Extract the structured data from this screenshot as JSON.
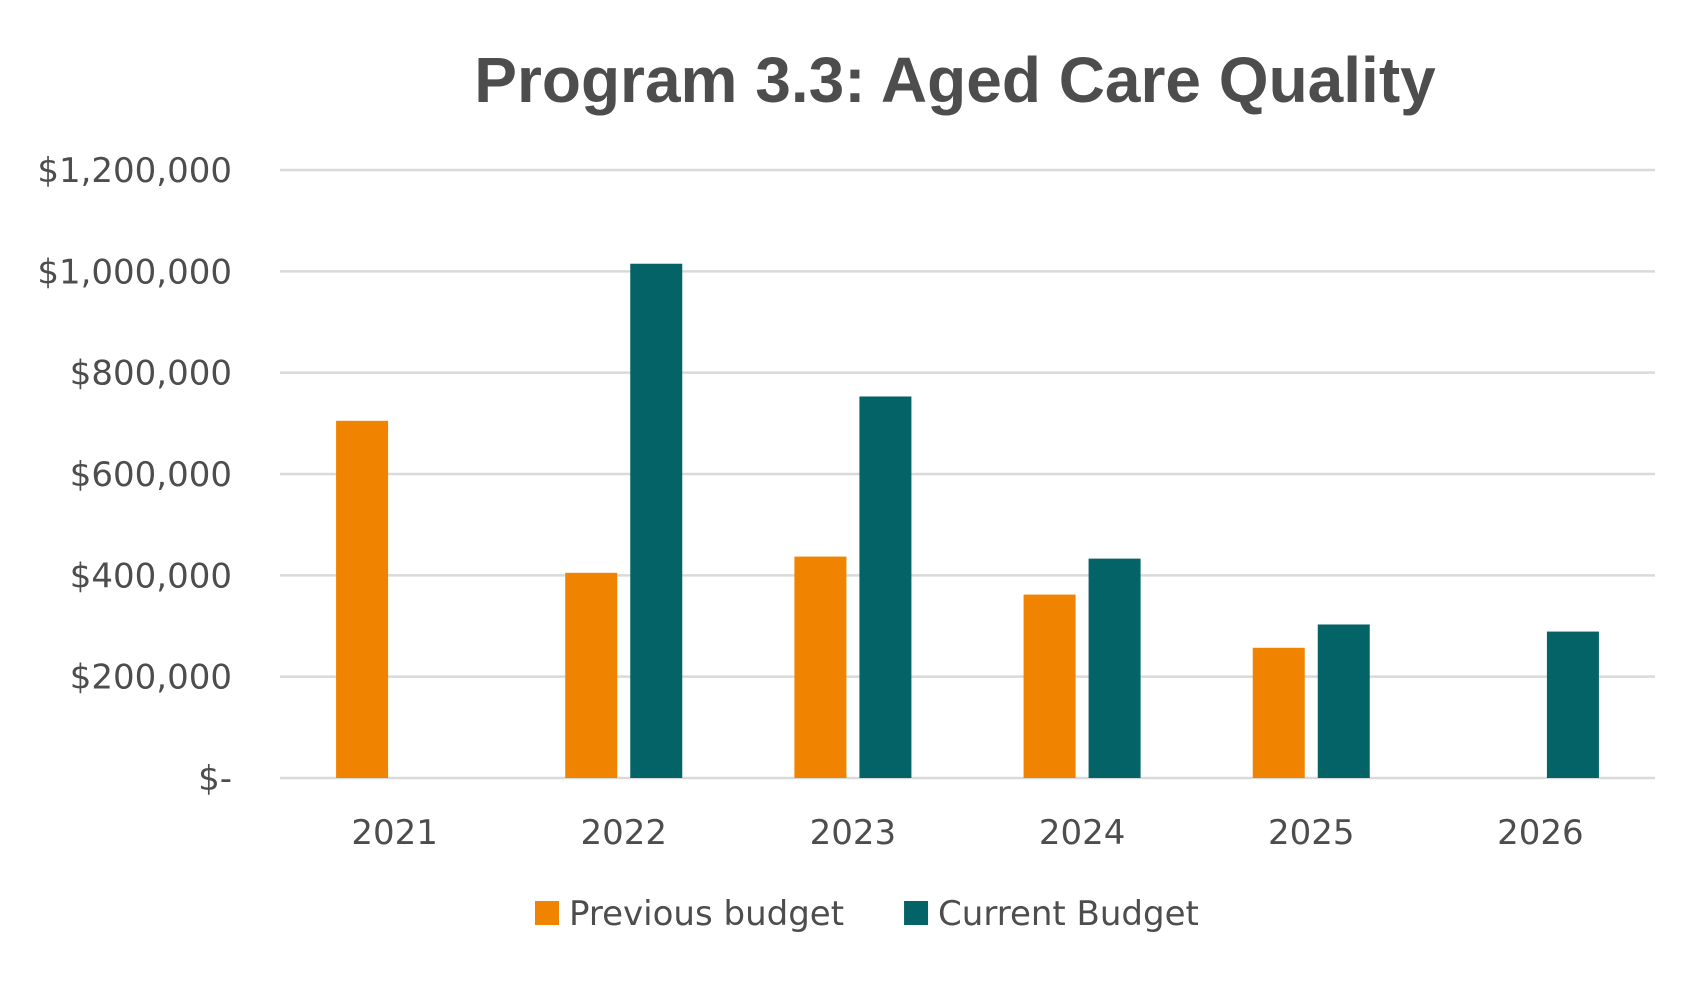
{
  "chart_data": {
    "type": "bar",
    "title": "Program 3.3: Aged Care Quality",
    "xlabel": "",
    "ylabel": "",
    "categories": [
      "2021",
      "2022",
      "2023",
      "2024",
      "2025",
      "2026"
    ],
    "series": [
      {
        "name": "Previous budget",
        "color": "#f08300",
        "values": [
          705000,
          405000,
          437000,
          362000,
          257000,
          null
        ]
      },
      {
        "name": "Current Budget",
        "color": "#046366",
        "values": [
          null,
          1015000,
          753000,
          433000,
          303000,
          289000
        ]
      }
    ],
    "ylim": [
      0,
      1200000
    ],
    "yticks": [
      {
        "value": 0,
        "label": "$-"
      },
      {
        "value": 200000,
        "label": "$200,000"
      },
      {
        "value": 400000,
        "label": "$400,000"
      },
      {
        "value": 600000,
        "label": "$600,000"
      },
      {
        "value": 800000,
        "label": "$800,000"
      },
      {
        "value": 1000000,
        "label": "$1,000,000"
      },
      {
        "value": 1200000,
        "label": "$1,200,000"
      }
    ],
    "grid": true,
    "legend": "bottom-center"
  }
}
